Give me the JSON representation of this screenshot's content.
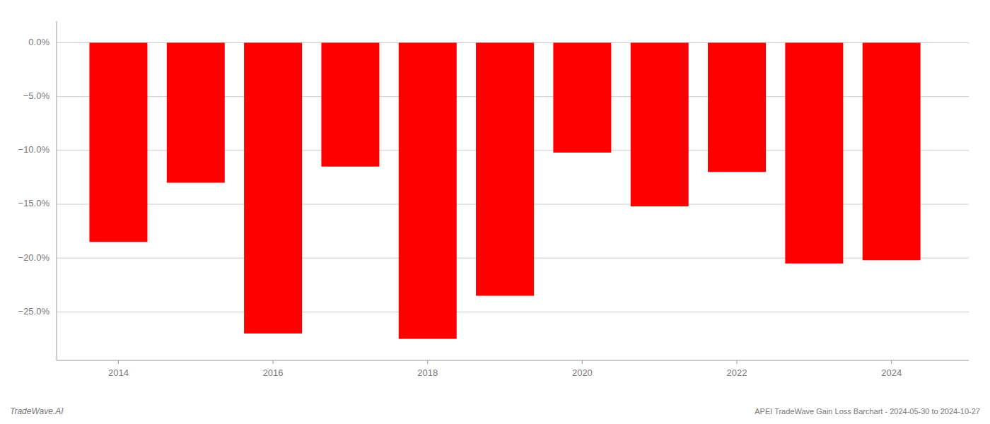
{
  "chart_data": {
    "type": "bar",
    "x": [
      2014,
      2015,
      2016,
      2017,
      2018,
      2019,
      2020,
      2021,
      2022,
      2023,
      2024
    ],
    "values": [
      -18.5,
      -13.0,
      -27.0,
      -11.5,
      -27.5,
      -23.5,
      -10.2,
      -15.2,
      -12.0,
      -20.5,
      -20.2
    ],
    "color": "#ff0000",
    "xlim": [
      2013.2,
      2025.0
    ],
    "xticks": [
      2014,
      2016,
      2018,
      2020,
      2022,
      2024
    ],
    "ylim": [
      -29.5,
      2.0
    ],
    "yticks": [
      {
        "value": 0.0,
        "label": "0.0%"
      },
      {
        "value": -5.0,
        "label": "−5.0%"
      },
      {
        "value": -10.0,
        "label": "−10.0%"
      },
      {
        "value": -15.0,
        "label": "−15.0%"
      },
      {
        "value": -20.0,
        "label": "−20.0%"
      },
      {
        "value": -25.0,
        "label": "−25.0%"
      }
    ],
    "grid": true,
    "annotations": [
      "TradeWave.AI",
      "APEI TradeWave Gain Loss Barchart - 2024-05-30 to 2024-10-27"
    ]
  }
}
